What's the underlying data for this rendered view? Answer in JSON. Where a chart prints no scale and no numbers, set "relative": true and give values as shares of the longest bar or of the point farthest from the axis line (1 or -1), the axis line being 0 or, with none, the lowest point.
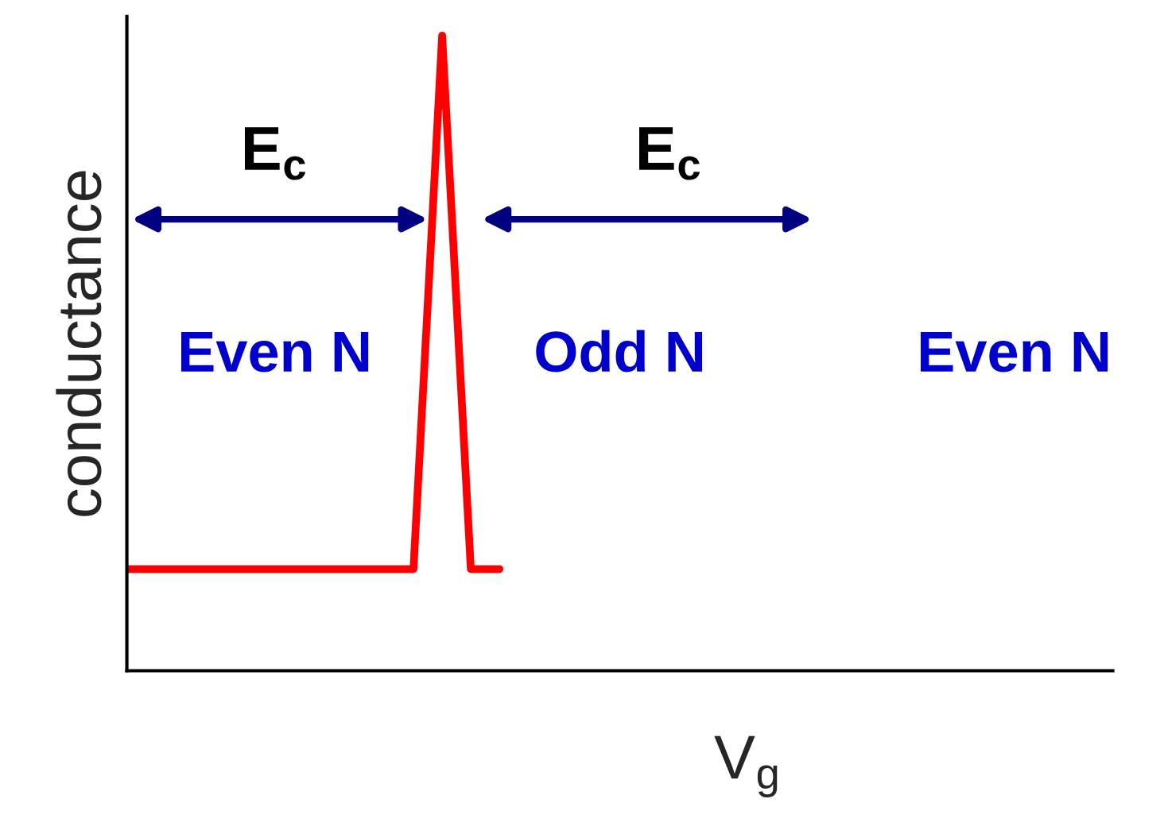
{
  "chart_data": {
    "type": "line",
    "relative": true,
    "xlabel": "V$_{g}$",
    "ylabel": "conductance",
    "line_style": "solid",
    "marker": "none",
    "categories": [
      null,
      null,
      null,
      null,
      null,
      null,
      null,
      null,
      null,
      null,
      null,
      null,
      null,
      null,
      null,
      null,
      null,
      null,
      null,
      null,
      null,
      null,
      null,
      null,
      null,
      null,
      null,
      null,
      null,
      null,
      null,
      null,
      null,
      null,
      null
    ],
    "series": [
      {
        "color": "#ff0000",
        "values": [
          0.16,
          0.16,
          0.16,
          0.16,
          0.16,
          0.16,
          0.16,
          0.16,
          0.16,
          0.16,
          0.16,
          1,
          0.16,
          0.16,
          null,
          null,
          null,
          null,
          null,
          null,
          null,
          null,
          null,
          null,
          null,
          null,
          null,
          null,
          null,
          null,
          null,
          null,
          null,
          null,
          null
        ]
      }
    ],
    "annotations": [
      "E$_{c}$",
      "E$_{c}$",
      "Even N",
      "Odd N",
      "Even N"
    ]
  }
}
